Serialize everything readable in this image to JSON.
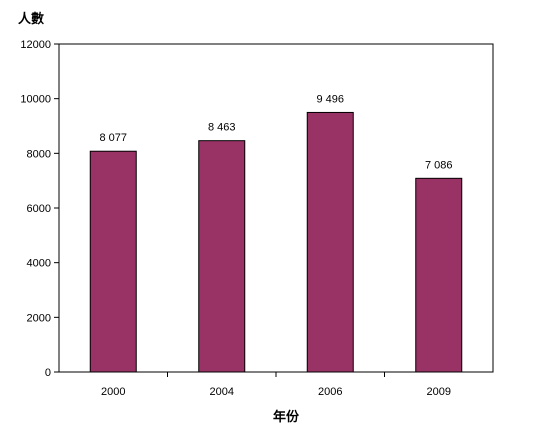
{
  "chart_data": {
    "type": "bar",
    "categories": [
      "2000",
      "2004",
      "2006",
      "2009"
    ],
    "values": [
      8077,
      8463,
      9496,
      7086
    ],
    "data_labels": [
      "8 077",
      "8 463",
      "9 496",
      "7 086"
    ],
    "yticks": [
      "0",
      "2000",
      "4000",
      "6000",
      "8000",
      "10000",
      "12000"
    ],
    "ylim": [
      0,
      12000
    ],
    "ylabel": "人數",
    "xlabel": "年份",
    "grid": false,
    "bar_color": "#993366",
    "axis_color": "#000000"
  }
}
